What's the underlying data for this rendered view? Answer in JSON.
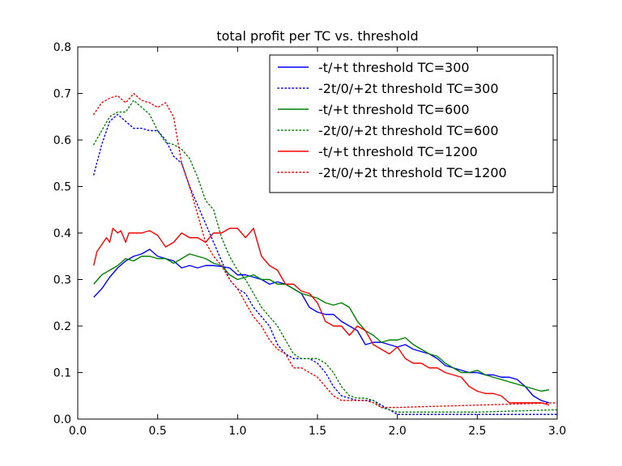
{
  "chart_data": {
    "type": "line",
    "title": "total profit per TC vs. threshold",
    "xlabel": "",
    "ylabel": "",
    "xlim": [
      0.0,
      3.0
    ],
    "ylim": [
      0.0,
      0.8
    ],
    "x_ticks": [
      "0.0",
      "0.5",
      "1.0",
      "1.5",
      "2.0",
      "2.5",
      "3.0"
    ],
    "y_ticks": [
      "0.0",
      "0.1",
      "0.2",
      "0.3",
      "0.4",
      "0.5",
      "0.6",
      "0.7",
      "0.8"
    ],
    "grid": false,
    "legend_position": "top-right",
    "series": [
      {
        "name": "-t/+t threshold TC=300",
        "color": "#0000ff",
        "style": "solid",
        "points": [
          [
            0.1,
            0.262
          ],
          [
            0.15,
            0.28
          ],
          [
            0.2,
            0.305
          ],
          [
            0.25,
            0.325
          ],
          [
            0.3,
            0.34
          ],
          [
            0.35,
            0.35
          ],
          [
            0.4,
            0.355
          ],
          [
            0.45,
            0.365
          ],
          [
            0.5,
            0.35
          ],
          [
            0.55,
            0.345
          ],
          [
            0.6,
            0.34
          ],
          [
            0.65,
            0.325
          ],
          [
            0.7,
            0.33
          ],
          [
            0.75,
            0.325
          ],
          [
            0.8,
            0.33
          ],
          [
            0.85,
            0.33
          ],
          [
            0.9,
            0.328
          ],
          [
            0.95,
            0.325
          ],
          [
            1.0,
            0.31
          ],
          [
            1.05,
            0.31
          ],
          [
            1.1,
            0.305
          ],
          [
            1.15,
            0.3
          ],
          [
            1.2,
            0.29
          ],
          [
            1.25,
            0.295
          ],
          [
            1.3,
            0.29
          ],
          [
            1.35,
            0.28
          ],
          [
            1.4,
            0.27
          ],
          [
            1.45,
            0.24
          ],
          [
            1.5,
            0.23
          ],
          [
            1.55,
            0.225
          ],
          [
            1.6,
            0.225
          ],
          [
            1.65,
            0.21
          ],
          [
            1.7,
            0.2
          ],
          [
            1.75,
            0.19
          ],
          [
            1.8,
            0.16
          ],
          [
            1.85,
            0.165
          ],
          [
            1.9,
            0.165
          ],
          [
            1.95,
            0.16
          ],
          [
            2.0,
            0.155
          ],
          [
            2.05,
            0.16
          ],
          [
            2.1,
            0.15
          ],
          [
            2.15,
            0.145
          ],
          [
            2.2,
            0.14
          ],
          [
            2.25,
            0.13
          ],
          [
            2.3,
            0.115
          ],
          [
            2.35,
            0.11
          ],
          [
            2.4,
            0.105
          ],
          [
            2.45,
            0.1
          ],
          [
            2.5,
            0.1
          ],
          [
            2.55,
            0.095
          ],
          [
            2.6,
            0.095
          ],
          [
            2.65,
            0.09
          ],
          [
            2.7,
            0.09
          ],
          [
            2.75,
            0.085
          ],
          [
            2.8,
            0.07
          ],
          [
            2.85,
            0.05
          ],
          [
            2.9,
            0.04
          ],
          [
            2.95,
            0.035
          ]
        ]
      },
      {
        "name": "-2t/0/+2t threshold TC=300",
        "color": "#0000ff",
        "style": "dotted",
        "points": [
          [
            0.1,
            0.525
          ],
          [
            0.15,
            0.59
          ],
          [
            0.2,
            0.64
          ],
          [
            0.25,
            0.655
          ],
          [
            0.3,
            0.64
          ],
          [
            0.35,
            0.625
          ],
          [
            0.4,
            0.625
          ],
          [
            0.45,
            0.62
          ],
          [
            0.5,
            0.62
          ],
          [
            0.55,
            0.6
          ],
          [
            0.6,
            0.565
          ],
          [
            0.65,
            0.55
          ],
          [
            0.7,
            0.5
          ],
          [
            0.75,
            0.46
          ],
          [
            0.8,
            0.42
          ],
          [
            0.85,
            0.38
          ],
          [
            0.9,
            0.34
          ],
          [
            0.95,
            0.3
          ],
          [
            1.0,
            0.28
          ],
          [
            1.05,
            0.27
          ],
          [
            1.1,
            0.24
          ],
          [
            1.15,
            0.22
          ],
          [
            1.2,
            0.2
          ],
          [
            1.25,
            0.16
          ],
          [
            1.3,
            0.14
          ],
          [
            1.35,
            0.13
          ],
          [
            1.4,
            0.13
          ],
          [
            1.45,
            0.13
          ],
          [
            1.5,
            0.12
          ],
          [
            1.55,
            0.1
          ],
          [
            1.6,
            0.07
          ],
          [
            1.65,
            0.05
          ],
          [
            1.7,
            0.045
          ],
          [
            1.75,
            0.04
          ],
          [
            1.8,
            0.04
          ],
          [
            1.85,
            0.04
          ],
          [
            1.9,
            0.03
          ],
          [
            1.95,
            0.02
          ],
          [
            2.0,
            0.01
          ],
          [
            2.5,
            0.01
          ],
          [
            3.0,
            0.01
          ]
        ]
      },
      {
        "name": "-t/+t threshold TC=600",
        "color": "#008000",
        "style": "solid",
        "points": [
          [
            0.1,
            0.29
          ],
          [
            0.15,
            0.31
          ],
          [
            0.2,
            0.32
          ],
          [
            0.25,
            0.33
          ],
          [
            0.3,
            0.345
          ],
          [
            0.35,
            0.34
          ],
          [
            0.4,
            0.35
          ],
          [
            0.45,
            0.35
          ],
          [
            0.5,
            0.345
          ],
          [
            0.55,
            0.345
          ],
          [
            0.6,
            0.335
          ],
          [
            0.65,
            0.345
          ],
          [
            0.7,
            0.355
          ],
          [
            0.75,
            0.35
          ],
          [
            0.8,
            0.345
          ],
          [
            0.85,
            0.335
          ],
          [
            0.9,
            0.33
          ],
          [
            0.95,
            0.31
          ],
          [
            1.0,
            0.3
          ],
          [
            1.05,
            0.305
          ],
          [
            1.1,
            0.31
          ],
          [
            1.15,
            0.3
          ],
          [
            1.2,
            0.3
          ],
          [
            1.25,
            0.29
          ],
          [
            1.3,
            0.29
          ],
          [
            1.35,
            0.28
          ],
          [
            1.4,
            0.27
          ],
          [
            1.45,
            0.265
          ],
          [
            1.5,
            0.26
          ],
          [
            1.55,
            0.25
          ],
          [
            1.6,
            0.245
          ],
          [
            1.65,
            0.25
          ],
          [
            1.7,
            0.24
          ],
          [
            1.75,
            0.21
          ],
          [
            1.8,
            0.19
          ],
          [
            1.85,
            0.18
          ],
          [
            1.9,
            0.165
          ],
          [
            1.95,
            0.17
          ],
          [
            2.0,
            0.17
          ],
          [
            2.05,
            0.175
          ],
          [
            2.1,
            0.16
          ],
          [
            2.15,
            0.15
          ],
          [
            2.2,
            0.14
          ],
          [
            2.25,
            0.135
          ],
          [
            2.3,
            0.12
          ],
          [
            2.35,
            0.11
          ],
          [
            2.4,
            0.1
          ],
          [
            2.45,
            0.1
          ],
          [
            2.5,
            0.105
          ],
          [
            2.55,
            0.095
          ],
          [
            2.6,
            0.09
          ],
          [
            2.65,
            0.085
          ],
          [
            2.7,
            0.08
          ],
          [
            2.75,
            0.075
          ],
          [
            2.8,
            0.07
          ],
          [
            2.85,
            0.065
          ],
          [
            2.9,
            0.06
          ],
          [
            2.95,
            0.063
          ]
        ]
      },
      {
        "name": "-2t/0/+2t threshold TC=600",
        "color": "#008000",
        "style": "dotted",
        "points": [
          [
            0.1,
            0.59
          ],
          [
            0.15,
            0.62
          ],
          [
            0.2,
            0.65
          ],
          [
            0.25,
            0.66
          ],
          [
            0.3,
            0.66
          ],
          [
            0.35,
            0.685
          ],
          [
            0.4,
            0.67
          ],
          [
            0.45,
            0.655
          ],
          [
            0.5,
            0.62
          ],
          [
            0.55,
            0.595
          ],
          [
            0.6,
            0.59
          ],
          [
            0.65,
            0.58
          ],
          [
            0.7,
            0.56
          ],
          [
            0.75,
            0.52
          ],
          [
            0.8,
            0.47
          ],
          [
            0.85,
            0.45
          ],
          [
            0.9,
            0.39
          ],
          [
            0.95,
            0.35
          ],
          [
            1.0,
            0.32
          ],
          [
            1.05,
            0.3
          ],
          [
            1.1,
            0.27
          ],
          [
            1.15,
            0.24
          ],
          [
            1.2,
            0.22
          ],
          [
            1.25,
            0.2
          ],
          [
            1.3,
            0.17
          ],
          [
            1.35,
            0.14
          ],
          [
            1.4,
            0.13
          ],
          [
            1.45,
            0.13
          ],
          [
            1.5,
            0.13
          ],
          [
            1.55,
            0.12
          ],
          [
            1.6,
            0.1
          ],
          [
            1.65,
            0.07
          ],
          [
            1.7,
            0.05
          ],
          [
            1.75,
            0.045
          ],
          [
            1.8,
            0.045
          ],
          [
            1.85,
            0.04
          ],
          [
            1.9,
            0.025
          ],
          [
            1.95,
            0.02
          ],
          [
            2.0,
            0.015
          ],
          [
            2.5,
            0.015
          ],
          [
            3.0,
            0.02
          ]
        ]
      },
      {
        "name": "-t/+t threshold TC=1200",
        "color": "#ff0000",
        "style": "solid",
        "points": [
          [
            0.1,
            0.33
          ],
          [
            0.12,
            0.36
          ],
          [
            0.15,
            0.375
          ],
          [
            0.18,
            0.39
          ],
          [
            0.2,
            0.38
          ],
          [
            0.22,
            0.41
          ],
          [
            0.25,
            0.4
          ],
          [
            0.27,
            0.405
          ],
          [
            0.3,
            0.38
          ],
          [
            0.32,
            0.4
          ],
          [
            0.35,
            0.4
          ],
          [
            0.4,
            0.4
          ],
          [
            0.45,
            0.405
          ],
          [
            0.5,
            0.395
          ],
          [
            0.55,
            0.37
          ],
          [
            0.6,
            0.38
          ],
          [
            0.65,
            0.4
          ],
          [
            0.7,
            0.39
          ],
          [
            0.75,
            0.39
          ],
          [
            0.8,
            0.38
          ],
          [
            0.85,
            0.4
          ],
          [
            0.9,
            0.4
          ],
          [
            0.95,
            0.41
          ],
          [
            1.0,
            0.41
          ],
          [
            1.05,
            0.39
          ],
          [
            1.1,
            0.41
          ],
          [
            1.15,
            0.35
          ],
          [
            1.2,
            0.33
          ],
          [
            1.25,
            0.32
          ],
          [
            1.3,
            0.29
          ],
          [
            1.35,
            0.29
          ],
          [
            1.4,
            0.275
          ],
          [
            1.45,
            0.27
          ],
          [
            1.5,
            0.25
          ],
          [
            1.55,
            0.21
          ],
          [
            1.6,
            0.2
          ],
          [
            1.65,
            0.2
          ],
          [
            1.7,
            0.18
          ],
          [
            1.75,
            0.2
          ],
          [
            1.8,
            0.19
          ],
          [
            1.85,
            0.16
          ],
          [
            1.9,
            0.15
          ],
          [
            1.95,
            0.14
          ],
          [
            2.0,
            0.155
          ],
          [
            2.05,
            0.13
          ],
          [
            2.1,
            0.12
          ],
          [
            2.15,
            0.12
          ],
          [
            2.2,
            0.11
          ],
          [
            2.25,
            0.11
          ],
          [
            2.3,
            0.1
          ],
          [
            2.35,
            0.095
          ],
          [
            2.4,
            0.09
          ],
          [
            2.45,
            0.07
          ],
          [
            2.5,
            0.06
          ],
          [
            2.55,
            0.055
          ],
          [
            2.6,
            0.055
          ],
          [
            2.65,
            0.05
          ],
          [
            2.7,
            0.035
          ],
          [
            2.8,
            0.035
          ],
          [
            2.9,
            0.035
          ],
          [
            2.95,
            0.03
          ]
        ]
      },
      {
        "name": "-2t/0/+2t threshold TC=1200",
        "color": "#ff0000",
        "style": "dotted",
        "points": [
          [
            0.1,
            0.655
          ],
          [
            0.15,
            0.68
          ],
          [
            0.2,
            0.69
          ],
          [
            0.25,
            0.695
          ],
          [
            0.3,
            0.68
          ],
          [
            0.35,
            0.7
          ],
          [
            0.4,
            0.685
          ],
          [
            0.45,
            0.68
          ],
          [
            0.5,
            0.67
          ],
          [
            0.55,
            0.68
          ],
          [
            0.6,
            0.65
          ],
          [
            0.65,
            0.55
          ],
          [
            0.7,
            0.5
          ],
          [
            0.75,
            0.44
          ],
          [
            0.8,
            0.38
          ],
          [
            0.85,
            0.35
          ],
          [
            0.9,
            0.33
          ],
          [
            0.95,
            0.3
          ],
          [
            1.0,
            0.28
          ],
          [
            1.05,
            0.25
          ],
          [
            1.1,
            0.22
          ],
          [
            1.15,
            0.2
          ],
          [
            1.2,
            0.17
          ],
          [
            1.25,
            0.15
          ],
          [
            1.3,
            0.14
          ],
          [
            1.35,
            0.11
          ],
          [
            1.4,
            0.11
          ],
          [
            1.45,
            0.1
          ],
          [
            1.5,
            0.09
          ],
          [
            1.55,
            0.07
          ],
          [
            1.6,
            0.05
          ],
          [
            1.65,
            0.04
          ],
          [
            1.7,
            0.04
          ],
          [
            1.75,
            0.04
          ],
          [
            1.8,
            0.04
          ],
          [
            1.85,
            0.035
          ],
          [
            1.9,
            0.025
          ],
          [
            2.0,
            0.025
          ],
          [
            2.5,
            0.03
          ],
          [
            3.0,
            0.035
          ]
        ]
      }
    ]
  }
}
